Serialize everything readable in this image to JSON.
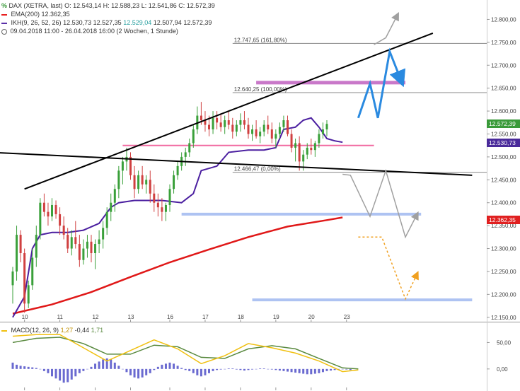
{
  "header": {
    "line1": {
      "icon": "percent-icon",
      "label": "DAX (XETRA, last)",
      "o": "O: 12.543,14",
      "h": "H: 12.588,23",
      "l": "L: 12.541,86",
      "c": "C: 12.572,39"
    },
    "line2": {
      "label": "EMA(200)",
      "value": "12.362,35",
      "color": "#e82020"
    },
    "line3": {
      "label": "IKH(9, 26, 52, 26)",
      "v1": "12.530,73",
      "v2": "12.527,35",
      "v3": "12.529,04",
      "v4": "12.507,94",
      "v5": "12.572,39",
      "color": "#5a2fa8"
    },
    "line4": {
      "label": "09.04.2018 11:00 - 26.04.2018 16:00",
      "period": "(2 Wochen, 1 Stunde)"
    }
  },
  "macd_legend": {
    "label": "MACD(12, 26, 9)",
    "v1": "1,27",
    "v2": "-0,44",
    "v3": "1,71"
  },
  "tags": [
    {
      "text": "12.572,39",
      "color": "#3a9a3a",
      "price": 12572.39
    },
    {
      "text": "12.530,73",
      "color": "#4a2a9a",
      "price": 12530.73
    },
    {
      "text": "12.362,35",
      "color": "#e02020",
      "price": 12362.35
    }
  ],
  "chart_data": {
    "type": "candlestick",
    "ylim": [
      12145,
      12830
    ],
    "y_ticks": [
      "12.800,00",
      "12.750,00",
      "12.700,00",
      "12.650,00",
      "12.600,00",
      "12.550,00",
      "12.500,00",
      "12.450,00",
      "12.400,00",
      "12.350,00",
      "12.300,00",
      "12.250,00",
      "12.200,00",
      "12.150,00"
    ],
    "y_tick_values": [
      12800,
      12750,
      12700,
      12650,
      12600,
      12550,
      12500,
      12450,
      12400,
      12350,
      12300,
      12250,
      12200,
      12150
    ],
    "x_ticks": [
      "10",
      "11",
      "12",
      "13",
      "16",
      "17",
      "18",
      "19",
      "20",
      "23"
    ],
    "x_tick_index": [
      3,
      12,
      21,
      30,
      40,
      49,
      58,
      67,
      76,
      85
    ],
    "n_bars": 99,
    "candles_ohlc": [
      [
        12220,
        12260,
        12180,
        12250
      ],
      [
        12250,
        12350,
        12230,
        12330
      ],
      [
        12330,
        12340,
        12270,
        12290
      ],
      [
        12290,
        12300,
        12160,
        12180
      ],
      [
        12180,
        12230,
        12170,
        12220
      ],
      [
        12220,
        12300,
        12210,
        12280
      ],
      [
        12280,
        12350,
        12260,
        12330
      ],
      [
        12330,
        12410,
        12320,
        12400
      ],
      [
        12400,
        12420,
        12370,
        12380
      ],
      [
        12380,
        12400,
        12350,
        12370
      ],
      [
        12370,
        12410,
        12360,
        12395
      ],
      [
        12395,
        12405,
        12365,
        12375
      ],
      [
        12375,
        12390,
        12330,
        12350
      ],
      [
        12350,
        12370,
        12320,
        12330
      ],
      [
        12330,
        12345,
        12290,
        12300
      ],
      [
        12300,
        12340,
        12285,
        12325
      ],
      [
        12325,
        12360,
        12300,
        12310
      ],
      [
        12310,
        12330,
        12260,
        12275
      ],
      [
        12275,
        12320,
        12265,
        12300
      ],
      [
        12300,
        12330,
        12280,
        12315
      ],
      [
        12315,
        12330,
        12270,
        12290
      ],
      [
        12290,
        12320,
        12255,
        12310
      ],
      [
        12310,
        12340,
        12290,
        12320
      ],
      [
        12320,
        12360,
        12300,
        12345
      ],
      [
        12345,
        12390,
        12330,
        12380
      ],
      [
        12380,
        12420,
        12360,
        12400
      ],
      [
        12400,
        12440,
        12380,
        12430
      ],
      [
        12430,
        12480,
        12410,
        12470
      ],
      [
        12470,
        12500,
        12440,
        12490
      ],
      [
        12490,
        12520,
        12470,
        12500
      ],
      [
        12500,
        12510,
        12450,
        12460
      ],
      [
        12460,
        12480,
        12410,
        12430
      ],
      [
        12430,
        12470,
        12420,
        12460
      ],
      [
        12460,
        12480,
        12430,
        12440
      ],
      [
        12440,
        12460,
        12420,
        12450
      ],
      [
        12450,
        12470,
        12400,
        12420
      ],
      [
        12420,
        12440,
        12380,
        12400
      ],
      [
        12400,
        12420,
        12370,
        12390
      ],
      [
        12390,
        12410,
        12360,
        12380
      ],
      [
        12380,
        12400,
        12360,
        12395
      ],
      [
        12395,
        12440,
        12380,
        12430
      ],
      [
        12430,
        12470,
        12420,
        12460
      ],
      [
        12460,
        12490,
        12450,
        12480
      ],
      [
        12480,
        12510,
        12470,
        12500
      ],
      [
        12500,
        12520,
        12480,
        12510
      ],
      [
        12510,
        12540,
        12500,
        12530
      ],
      [
        12530,
        12570,
        12520,
        12560
      ],
      [
        12560,
        12610,
        12550,
        12590
      ],
      [
        12590,
        12620,
        12570,
        12580
      ],
      [
        12580,
        12600,
        12555,
        12570
      ],
      [
        12570,
        12590,
        12545,
        12560
      ],
      [
        12560,
        12600,
        12550,
        12585
      ],
      [
        12585,
        12600,
        12560,
        12575
      ],
      [
        12575,
        12595,
        12555,
        12565
      ],
      [
        12565,
        12590,
        12550,
        12580
      ],
      [
        12580,
        12600,
        12560,
        12570
      ],
      [
        12570,
        12585,
        12540,
        12555
      ],
      [
        12555,
        12580,
        12545,
        12570
      ],
      [
        12570,
        12595,
        12555,
        12580
      ],
      [
        12580,
        12600,
        12560,
        12570
      ],
      [
        12570,
        12585,
        12540,
        12550
      ],
      [
        12550,
        12570,
        12535,
        12560
      ],
      [
        12560,
        12580,
        12540,
        12545
      ],
      [
        12545,
        12565,
        12530,
        12555
      ],
      [
        12555,
        12580,
        12545,
        12570
      ],
      [
        12570,
        12590,
        12550,
        12560
      ],
      [
        12560,
        12575,
        12530,
        12540
      ],
      [
        12540,
        12560,
        12520,
        12550
      ],
      [
        12550,
        12575,
        12540,
        12565
      ],
      [
        12565,
        12590,
        12555,
        12580
      ],
      [
        12580,
        12590,
        12545,
        12550
      ],
      [
        12550,
        12560,
        12510,
        12520
      ],
      [
        12520,
        12540,
        12490,
        12530
      ],
      [
        12530,
        12545,
        12470,
        12490
      ],
      [
        12490,
        12515,
        12470,
        12505
      ],
      [
        12505,
        12530,
        12495,
        12520
      ],
      [
        12520,
        12540,
        12505,
        12515
      ],
      [
        12515,
        12535,
        12500,
        12530
      ],
      [
        12530,
        12560,
        12520,
        12550
      ],
      [
        12550,
        12575,
        12540,
        12560
      ],
      [
        12560,
        12580,
        12545,
        12572
      ]
    ],
    "lines": [
      {
        "name": "EMA(200)",
        "color": "#e01818",
        "points": [
          [
            0,
            12158
          ],
          [
            10,
            12178
          ],
          [
            20,
            12205
          ],
          [
            30,
            12238
          ],
          [
            40,
            12270
          ],
          [
            50,
            12298
          ],
          [
            60,
            12325
          ],
          [
            70,
            12348
          ],
          [
            80,
            12362
          ],
          [
            84,
            12368
          ]
        ]
      },
      {
        "name": "IKH",
        "color": "#4b1fa0",
        "points": [
          [
            0,
            12150
          ],
          [
            3,
            12195
          ],
          [
            5,
            12300
          ],
          [
            7,
            12330
          ],
          [
            10,
            12335
          ],
          [
            14,
            12335
          ],
          [
            18,
            12340
          ],
          [
            22,
            12355
          ],
          [
            25,
            12390
          ],
          [
            27,
            12400
          ],
          [
            31,
            12405
          ],
          [
            38,
            12405
          ],
          [
            43,
            12400
          ],
          [
            46,
            12420
          ],
          [
            48,
            12470
          ],
          [
            52,
            12480
          ],
          [
            55,
            12510
          ],
          [
            60,
            12515
          ],
          [
            64,
            12515
          ],
          [
            67,
            12520
          ],
          [
            69,
            12560
          ],
          [
            72,
            12565
          ],
          [
            74,
            12580
          ],
          [
            76,
            12585
          ],
          [
            78,
            12565
          ],
          [
            80,
            12540
          ],
          [
            82,
            12535
          ],
          [
            84,
            12532
          ]
        ]
      }
    ],
    "trendlines": [
      {
        "name": "upper-trendline",
        "color": "#000000",
        "from": [
          3,
          12430
        ],
        "to": [
          107,
          12770
        ]
      },
      {
        "name": "lower-trendline",
        "color": "#000000",
        "from": [
          -6,
          12510
        ],
        "to": [
          117,
          12460
        ]
      }
    ],
    "fib_levels": [
      {
        "label": "12.747,65 (161,80%)",
        "value": 12747.65,
        "x_start": 56
      },
      {
        "label": "12.640,25 (100,00%)",
        "value": 12640.25,
        "x_start": 56
      },
      {
        "label": "12.466,47 (0,00%)",
        "value": 12466.47,
        "x_start": 56
      }
    ],
    "zones": [
      {
        "name": "purple-zone",
        "color": "#c060c0",
        "value": 12662,
        "x_start": 62,
        "x_end": 100
      },
      {
        "name": "pink-line",
        "color": "#ee5090",
        "value": 12525,
        "x_start": 28,
        "x_end": 92
      },
      {
        "name": "blue-zone-1",
        "color": "#a0b8f0",
        "value": 12375,
        "x_start": 43,
        "x_end": 104
      },
      {
        "name": "blue-zone-2",
        "color": "#a0b8f0",
        "value": 12188,
        "x_start": 61,
        "x_end": 117
      }
    ],
    "projections": [
      {
        "name": "blue-projection",
        "color": "#2a8ae0",
        "points": [
          [
            88,
            12585
          ],
          [
            91,
            12660
          ],
          [
            93,
            12585
          ],
          [
            96,
            12730
          ],
          [
            99,
            12665
          ]
        ],
        "arrow": true
      },
      {
        "name": "gray-projection-1",
        "color": "#a0a0a0",
        "points": [
          [
            84,
            12462
          ],
          [
            86,
            12460
          ],
          [
            91,
            12370
          ],
          [
            95,
            12470
          ],
          [
            100,
            12325
          ],
          [
            103,
            12375
          ]
        ],
        "arrow": true
      },
      {
        "name": "orange-projection",
        "color": "#f0a020",
        "points": [
          [
            88,
            12325
          ],
          [
            94,
            12325
          ],
          [
            100,
            12190
          ],
          [
            103,
            12245
          ]
        ],
        "arrow": true,
        "dashed": true
      },
      {
        "name": "gray-projection-2",
        "color": "#a0a0a0",
        "points": [
          [
            92,
            12745
          ],
          [
            95,
            12760
          ],
          [
            98,
            12810
          ]
        ],
        "arrow": true
      }
    ],
    "macd": {
      "y_ticks": [
        "50,00",
        "0,00"
      ],
      "y_tick_values": [
        50,
        0
      ],
      "ylim": [
        -35,
        80
      ],
      "macd_line": [
        [
          0,
          62
        ],
        [
          6,
          65
        ],
        [
          12,
          65
        ],
        [
          18,
          40
        ],
        [
          24,
          15
        ],
        [
          30,
          35
        ],
        [
          36,
          55
        ],
        [
          42,
          38
        ],
        [
          48,
          10
        ],
        [
          54,
          25
        ],
        [
          60,
          48
        ],
        [
          66,
          40
        ],
        [
          72,
          30
        ],
        [
          78,
          15
        ],
        [
          84,
          -5
        ],
        [
          88,
          -2
        ]
      ],
      "signal_line": [
        [
          0,
          50
        ],
        [
          6,
          58
        ],
        [
          12,
          60
        ],
        [
          18,
          48
        ],
        [
          24,
          28
        ],
        [
          30,
          28
        ],
        [
          36,
          45
        ],
        [
          42,
          42
        ],
        [
          48,
          22
        ],
        [
          54,
          20
        ],
        [
          60,
          38
        ],
        [
          66,
          44
        ],
        [
          72,
          38
        ],
        [
          78,
          20
        ],
        [
          84,
          2
        ],
        [
          88,
          0
        ]
      ],
      "histogram": [
        12,
        8,
        6,
        5,
        4,
        3,
        2,
        0,
        -4,
        -8,
        -14,
        -18,
        -22,
        -26,
        -25,
        -20,
        -14,
        -8,
        -4,
        0,
        4,
        10,
        14,
        18,
        20,
        18,
        12,
        6,
        0,
        -6,
        -12,
        -16,
        -18,
        -16,
        -12,
        -8,
        -2,
        4,
        8,
        10,
        12,
        10,
        6,
        2,
        -2,
        -4,
        -8,
        -12,
        -14,
        -12,
        -8,
        -4,
        -2,
        -1,
        0,
        1,
        1,
        -1,
        -2,
        -3,
        -2,
        -1,
        0,
        1,
        1,
        0,
        -1,
        -2,
        -3,
        -4,
        -5,
        -6,
        -7,
        -8,
        -9,
        -10,
        -10,
        -9,
        -8,
        -6,
        -4,
        -3,
        -2,
        -1,
        0,
        -1,
        -2
      ],
      "macd_color": "#f0c010",
      "signal_color": "#5a8a40",
      "hist_color": "#6a6ad0"
    }
  }
}
